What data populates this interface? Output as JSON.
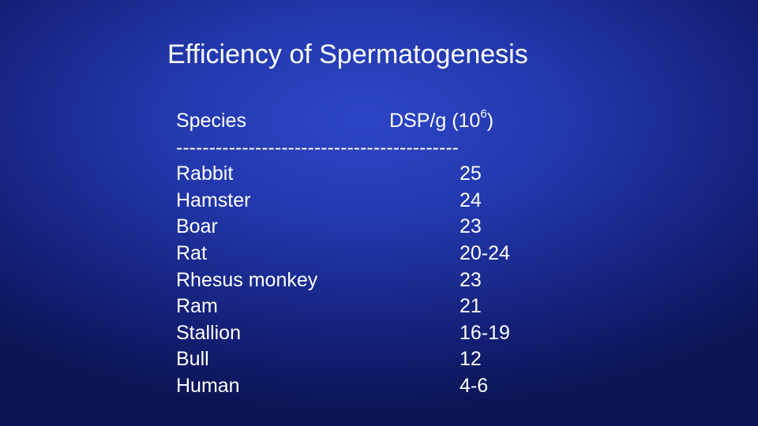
{
  "slide": {
    "title": "Efficiency of Spermatogenesis",
    "header": {
      "species_label": "Species",
      "value_label": "DSP/g (10",
      "value_exponent": "6",
      "value_close": ")"
    },
    "divider": "-------------------------------------------",
    "rows": [
      {
        "species": "Rabbit",
        "value": "25"
      },
      {
        "species": "Hamster",
        "value": "24"
      },
      {
        "species": "Boar",
        "value": "23"
      },
      {
        "species": "Rat",
        "value": "20-24"
      },
      {
        "species": "Rhesus monkey",
        "value": "23"
      },
      {
        "species": "Ram",
        "value": "21"
      },
      {
        "species": "Stallion",
        "value": "16-19"
      },
      {
        "species": "Bull",
        "value": "12"
      },
      {
        "species": "Human",
        "value": "4-6"
      }
    ]
  }
}
